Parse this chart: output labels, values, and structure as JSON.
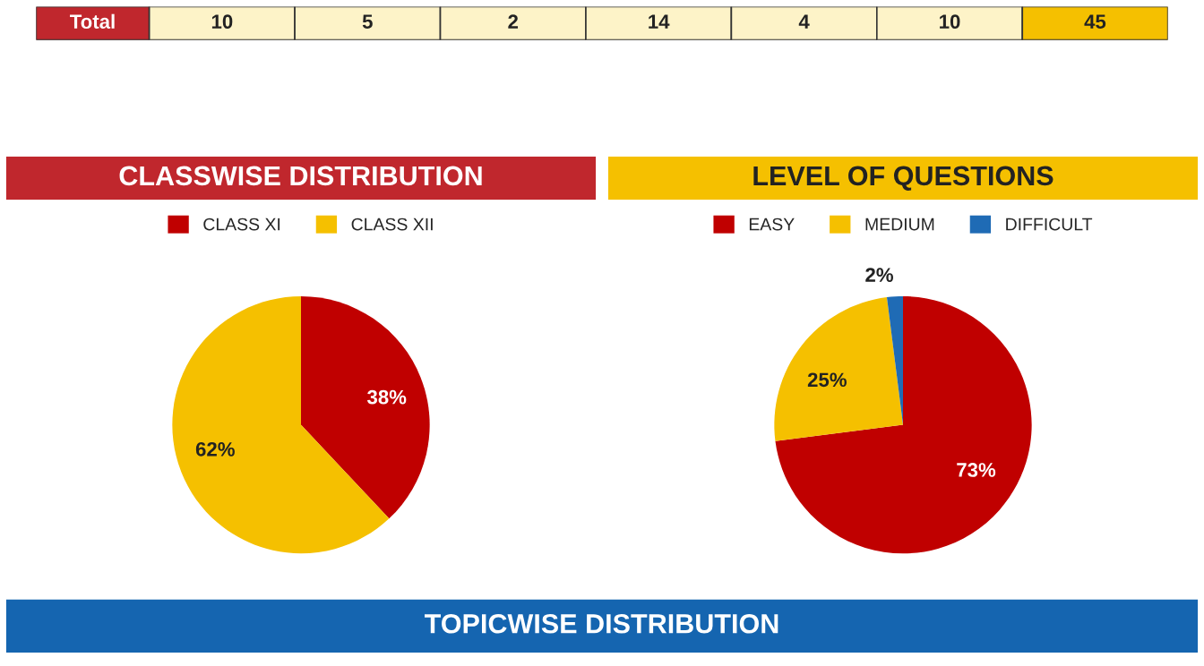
{
  "chart_data": [
    {
      "type": "other",
      "annotations": [
        "Total",
        "10",
        "5",
        "2",
        "14",
        "4",
        "10",
        "45"
      ]
    },
    {
      "type": "pie",
      "title": "CLASSWISE DISTRIBUTION",
      "categories": [
        "CLASS XI",
        "CLASS XII"
      ],
      "values": [
        38,
        62
      ],
      "colors": [
        "#c00000",
        "#f5c000"
      ],
      "value_labels": [
        "38%",
        "62%"
      ],
      "legend": "top"
    },
    {
      "type": "pie",
      "title": "LEVEL OF QUESTIONS",
      "categories": [
        "EASY",
        "MEDIUM",
        "DIFFICULT"
      ],
      "values": [
        73,
        25,
        2
      ],
      "colors": [
        "#c00000",
        "#f5c000",
        "#1f6bb5"
      ],
      "value_labels": [
        "73%",
        "25%",
        "2%"
      ],
      "legend": "top"
    },
    {
      "type": "other",
      "title": "TOPICWISE DISTRIBUTION"
    }
  ]
}
